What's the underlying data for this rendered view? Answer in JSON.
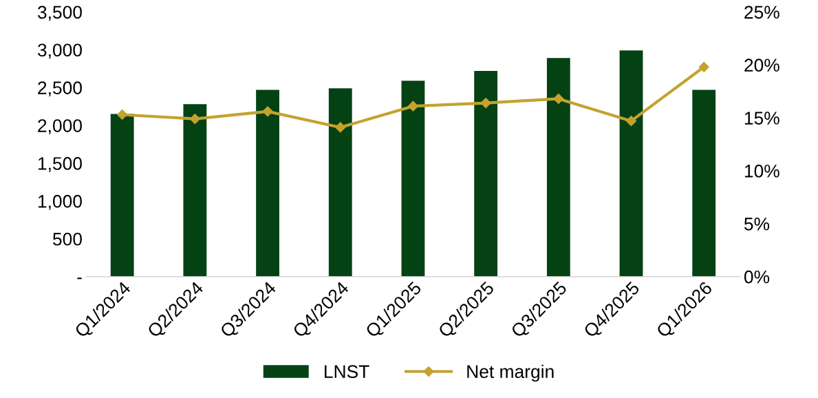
{
  "chart_data": {
    "type": "bar",
    "categories": [
      "Q1/2024",
      "Q2/2024",
      "Q3/2024",
      "Q4/2024",
      "Q1/2025",
      "Q2/2025",
      "Q3/2025",
      "Q4/2025",
      "Q1/2026"
    ],
    "series": [
      {
        "name": "LNST",
        "color": "#044214",
        "values": [
          2150,
          2280,
          2470,
          2490,
          2590,
          2720,
          2890,
          2990,
          2470
        ]
      },
      {
        "name": "Net margin",
        "type": "line",
        "axis": "y2",
        "color": "#c4a22e",
        "marker": "diamond",
        "values": [
          15.3,
          14.9,
          15.6,
          14.1,
          16.1,
          16.4,
          16.8,
          14.7,
          19.8
        ]
      }
    ],
    "ylim": [
      0,
      3500
    ],
    "yticks": [
      {
        "value": 0,
        "label": "-"
      },
      500,
      {
        "value": 1000,
        "label": "1,000"
      },
      {
        "value": 1500,
        "label": "1,500"
      },
      {
        "value": 2000,
        "label": "2,000"
      },
      {
        "value": 2500,
        "label": "2,500"
      },
      {
        "value": 3000,
        "label": "3,000"
      },
      {
        "value": 3500,
        "label": "3,500"
      }
    ],
    "y2lim": [
      0,
      25
    ],
    "y2ticks": [
      {
        "value": 0,
        "label": "0%"
      },
      {
        "value": 5,
        "label": "5%"
      },
      {
        "value": 10,
        "label": "10%"
      },
      {
        "value": 15,
        "label": "15%"
      },
      {
        "value": 20,
        "label": "20%"
      },
      {
        "value": 25,
        "label": "25%"
      }
    ],
    "grid": false,
    "legend": "bottom"
  }
}
